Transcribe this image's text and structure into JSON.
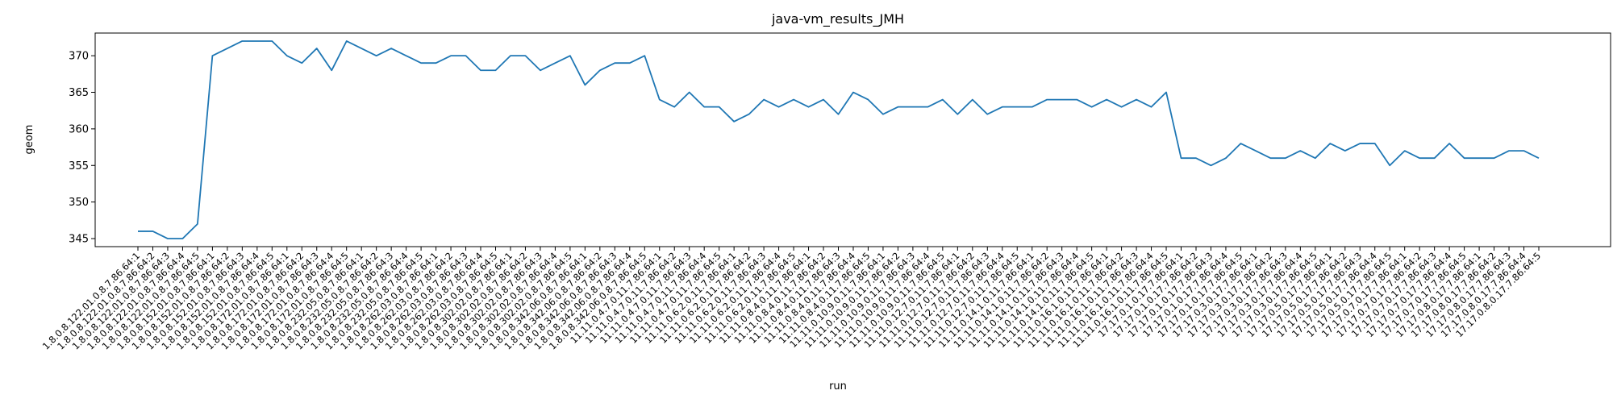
{
  "chart_data": {
    "type": "line",
    "title": "java-vm_results_JMH",
    "xlabel": "run",
    "ylabel": "geom",
    "ylim": [
      343.9,
      373.1
    ],
    "yticks": [
      345,
      350,
      355,
      360,
      365,
      370
    ],
    "grid": false,
    "line_color": "#1f77b4",
    "categories": [
      "1.8.0.8.122.01.0.8.7.86.64:1",
      "1.8.0.8.122.01.0.8.7.86.64:2",
      "1.8.0.8.122.01.0.8.7.86.64:3",
      "1.8.0.8.122.01.0.8.7.86.64:4",
      "1.8.0.8.122.01.0.8.7.86.64:5",
      "1.8.0.8.152.01.0.8.7.86.64:1",
      "1.8.0.8.152.01.0.8.7.86.64:2",
      "1.8.0.8.152.01.0.8.7.86.64:3",
      "1.8.0.8.152.01.0.8.7.86.64:4",
      "1.8.0.8.152.01.0.8.7.86.64:5",
      "1.8.0.8.172.01.0.8.7.86.64:1",
      "1.8.0.8.172.01.0.8.7.86.64:2",
      "1.8.0.8.172.01.0.8.7.86.64:3",
      "1.8.0.8.172.01.0.8.7.86.64:4",
      "1.8.0.8.172.01.0.8.7.86.64:5",
      "1.8.0.8.232.05.0.8.7.86.64:1",
      "1.8.0.8.232.05.0.8.7.86.64:2",
      "1.8.0.8.232.05.0.8.7.86.64:3",
      "1.8.0.8.232.05.0.8.7.86.64:4",
      "1.8.0.8.232.05.0.8.7.86.64:5",
      "1.8.0.8.262.03.0.8.7.86.64:1",
      "1.8.0.8.262.03.0.8.7.86.64:2",
      "1.8.0.8.262.03.0.8.7.86.64:3",
      "1.8.0.8.262.03.0.8.7.86.64:4",
      "1.8.0.8.262.03.0.8.7.86.64:5",
      "1.8.0.8.302.02.0.8.7.86.64:1",
      "1.8.0.8.302.02.0.8.7.86.64:2",
      "1.8.0.8.302.02.0.8.7.86.64:3",
      "1.8.0.8.302.02.0.8.7.86.64:4",
      "1.8.0.8.302.02.0.8.7.86.64:5",
      "1.8.0.8.342.06.0.8.7.86.64:1",
      "1.8.0.8.342.06.0.8.7.86.64:2",
      "1.8.0.8.342.06.0.8.7.86.64:3",
      "1.8.0.8.342.06.0.8.7.86.64:4",
      "1.8.0.8.342.06.0.8.7.86.64:5",
      "11.11.0.4.7.0.11.7.86.64:1",
      "11.11.0.4.7.0.11.7.86.64:2",
      "11.11.0.4.7.0.11.7.86.64:3",
      "11.11.0.4.7.0.11.7.86.64:4",
      "11.11.0.4.7.0.11.7.86.64:5",
      "11.11.0.6.2.0.11.7.86.64:1",
      "11.11.0.6.2.0.11.7.86.64:2",
      "11.11.0.6.2.0.11.7.86.64:3",
      "11.11.0.6.2.0.11.7.86.64:4",
      "11.11.0.6.2.0.11.7.86.64:5",
      "11.11.0.8.4.0.11.7.86.64:1",
      "11.11.0.8.4.0.11.7.86.64:2",
      "11.11.0.8.4.0.11.7.86.64:3",
      "11.11.0.8.4.0.11.7.86.64:4",
      "11.11.0.8.4.0.11.7.86.64:5",
      "11.11.0.10.9.0.11.7.86.64:1",
      "11.11.0.10.9.0.11.7.86.64:2",
      "11.11.0.10.9.0.11.7.86.64:3",
      "11.11.0.10.9.0.11.7.86.64:4",
      "11.11.0.10.9.0.11.7.86.64:5",
      "11.11.0.12.7.0.11.7.86.64:1",
      "11.11.0.12.7.0.11.7.86.64:2",
      "11.11.0.12.7.0.11.7.86.64:3",
      "11.11.0.12.7.0.11.7.86.64:4",
      "11.11.0.12.7.0.11.7.86.64:5",
      "11.11.0.14.1.0.11.7.86.64:1",
      "11.11.0.14.1.0.11.7.86.64:2",
      "11.11.0.14.1.0.11.7.86.64:3",
      "11.11.0.14.1.0.11.7.86.64:4",
      "11.11.0.14.1.0.11.7.86.64:5",
      "11.11.0.16.1.0.11.7.86.64:1",
      "11.11.0.16.1.0.11.7.86.64:2",
      "11.11.0.16.1.0.11.7.86.64:3",
      "11.11.0.16.1.0.11.7.86.64:4",
      "11.11.0.16.1.0.11.7.86.64:5",
      "17.17.0.1.0.17.7.86.64:1",
      "17.17.0.1.0.17.7.86.64:2",
      "17.17.0.1.0.17.7.86.64:3",
      "17.17.0.1.0.17.7.86.64:4",
      "17.17.0.1.0.17.7.86.64:5",
      "17.17.0.3.0.17.7.86.64:1",
      "17.17.0.3.0.17.7.86.64:2",
      "17.17.0.3.0.17.7.86.64:3",
      "17.17.0.3.0.17.7.86.64:4",
      "17.17.0.3.0.17.7.86.64:5",
      "17.17.0.5.0.17.7.86.64:1",
      "17.17.0.5.0.17.7.86.64:2",
      "17.17.0.5.0.17.7.86.64:3",
      "17.17.0.5.0.17.7.86.64:4",
      "17.17.0.5.0.17.7.86.64:5",
      "17.17.0.7.0.17.7.86.64:1",
      "17.17.0.7.0.17.7.86.64:2",
      "17.17.0.7.0.17.7.86.64:3",
      "17.17.0.7.0.17.7.86.64:4",
      "17.17.0.7.0.17.7.86.64:5",
      "17.17.0.8.0.17.7.86.64:1",
      "17.17.0.8.0.17.7.86.64:2",
      "17.17.0.8.0.17.7.86.64:3",
      "17.17.0.8.0.17.7.86.64:4",
      "17.17.0.8.0.17.7.86.64:5"
    ],
    "series": [
      {
        "values": [
          346,
          346,
          345,
          345,
          347,
          370,
          371,
          372,
          372,
          372,
          370,
          369,
          371,
          368,
          372,
          371,
          370,
          371,
          370,
          369,
          369,
          370,
          370,
          368,
          368,
          370,
          370,
          368,
          369,
          370,
          366,
          368,
          369,
          369,
          370,
          364,
          363,
          365,
          363,
          363,
          361,
          362,
          364,
          363,
          364,
          363,
          364,
          362,
          365,
          364,
          362,
          363,
          363,
          363,
          364,
          362,
          364,
          362,
          363,
          363,
          363,
          364,
          364,
          364,
          363,
          364,
          363,
          364,
          363,
          365,
          356,
          356,
          355,
          356,
          358,
          357,
          356,
          356,
          357,
          356,
          358,
          357,
          358,
          358,
          355,
          357,
          356,
          356,
          358,
          356,
          356,
          356,
          357,
          357,
          356
        ]
      }
    ]
  }
}
